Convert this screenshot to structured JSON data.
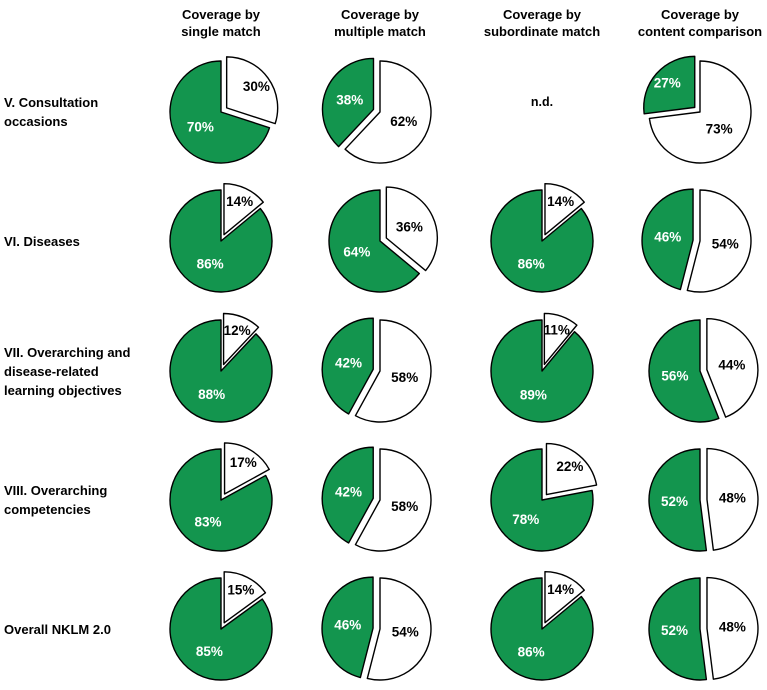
{
  "figure_name": "NKLM 2.0 coverage pie chart grid",
  "no_data_text": "n.d.",
  "colors": {
    "covered": "#13954E",
    "not_covered": "#FFFFFF",
    "outline": "#000000",
    "covered_label_text": "#FFFFFF",
    "not_covered_label_text": "#000000"
  },
  "grid": {
    "columns": [
      {
        "id": "single-match",
        "lines": [
          "Coverage by",
          "single match"
        ]
      },
      {
        "id": "multiple-match",
        "lines": [
          "Coverage by",
          "multiple match"
        ]
      },
      {
        "id": "subordinate-match",
        "lines": [
          "Coverage by",
          "subordinate match"
        ]
      },
      {
        "id": "content-comparison",
        "lines": [
          "Coverage by",
          "content comparison"
        ]
      }
    ],
    "rows": [
      {
        "id": "v-consultation-occasions",
        "label_lines": [
          "V. Consultation",
          "occasions"
        ],
        "pies": [
          {
            "covered": "70%",
            "not_covered": "30%"
          },
          {
            "covered": "38%",
            "not_covered": "62%"
          },
          {
            "no_data": "n.d."
          },
          {
            "covered": "27%",
            "not_covered": "73%"
          }
        ]
      },
      {
        "id": "vi-diseases",
        "label_lines": [
          "VI. Diseases"
        ],
        "pies": [
          {
            "covered": "86%",
            "not_covered": "14%"
          },
          {
            "covered": "64%",
            "not_covered": "36%"
          },
          {
            "covered": "86%",
            "not_covered": "14%"
          },
          {
            "covered": "46%",
            "not_covered": "54%"
          }
        ]
      },
      {
        "id": "vii-overarching-learning-objectives",
        "label_lines": [
          "VII. Overarching and",
          "disease-related",
          "learning objectives"
        ],
        "pies": [
          {
            "covered": "88%",
            "not_covered": "12%"
          },
          {
            "covered": "42%",
            "not_covered": "58%"
          },
          {
            "covered": "89%",
            "not_covered": "11%"
          },
          {
            "covered": "56%",
            "not_covered": "44%"
          }
        ]
      },
      {
        "id": "viii-overarching-competencies",
        "label_lines": [
          "VIII. Overarching",
          "competencies"
        ],
        "pies": [
          {
            "covered": "83%",
            "not_covered": "17%"
          },
          {
            "covered": "42%",
            "not_covered": "58%"
          },
          {
            "covered": "78%",
            "not_covered": "22%"
          },
          {
            "covered": "52%",
            "not_covered": "48%"
          }
        ]
      },
      {
        "id": "overall-nklm",
        "label_lines": [
          "Overall NKLM 2.0"
        ],
        "pies": [
          {
            "covered": "85%",
            "not_covered": "15%"
          },
          {
            "covered": "46%",
            "not_covered": "54%"
          },
          {
            "covered": "86%",
            "not_covered": "14%"
          },
          {
            "covered": "52%",
            "not_covered": "48%"
          }
        ]
      }
    ]
  },
  "chart_data": {
    "type": "pie",
    "unit": "percent",
    "description": "Grid of exploded pie charts: green = covered, white = not covered. Smaller slice is exploded. White slice starts at 12 o'clock clockwise.",
    "columns": [
      "Coverage by single match",
      "Coverage by multiple match",
      "Coverage by subordinate match",
      "Coverage by content comparison"
    ],
    "rows": [
      {
        "category": "V. Consultation occasions",
        "values": [
          {
            "covered": 70,
            "not_covered": 30
          },
          {
            "covered": 38,
            "not_covered": 62
          },
          "n.d.",
          {
            "covered": 27,
            "not_covered": 73
          }
        ]
      },
      {
        "category": "VI. Diseases",
        "values": [
          {
            "covered": 86,
            "not_covered": 14
          },
          {
            "covered": 64,
            "not_covered": 36
          },
          {
            "covered": 86,
            "not_covered": 14
          },
          {
            "covered": 46,
            "not_covered": 54
          }
        ]
      },
      {
        "category": "VII. Overarching and disease-related learning objectives",
        "values": [
          {
            "covered": 88,
            "not_covered": 12
          },
          {
            "covered": 42,
            "not_covered": 58
          },
          {
            "covered": 89,
            "not_covered": 11
          },
          {
            "covered": 56,
            "not_covered": 44
          }
        ]
      },
      {
        "category": "VIII. Overarching competencies",
        "values": [
          {
            "covered": 83,
            "not_covered": 17
          },
          {
            "covered": 42,
            "not_covered": 58
          },
          {
            "covered": 78,
            "not_covered": 22
          },
          {
            "covered": 52,
            "not_covered": 48
          }
        ]
      },
      {
        "category": "Overall NKLM 2.0",
        "values": [
          {
            "covered": 85,
            "not_covered": 15
          },
          {
            "covered": 46,
            "not_covered": 54
          },
          {
            "covered": 86,
            "not_covered": 14
          },
          {
            "covered": 52,
            "not_covered": 48
          }
        ]
      }
    ],
    "colors": {
      "covered": "#13954E",
      "not_covered": "#FFFFFF"
    }
  }
}
